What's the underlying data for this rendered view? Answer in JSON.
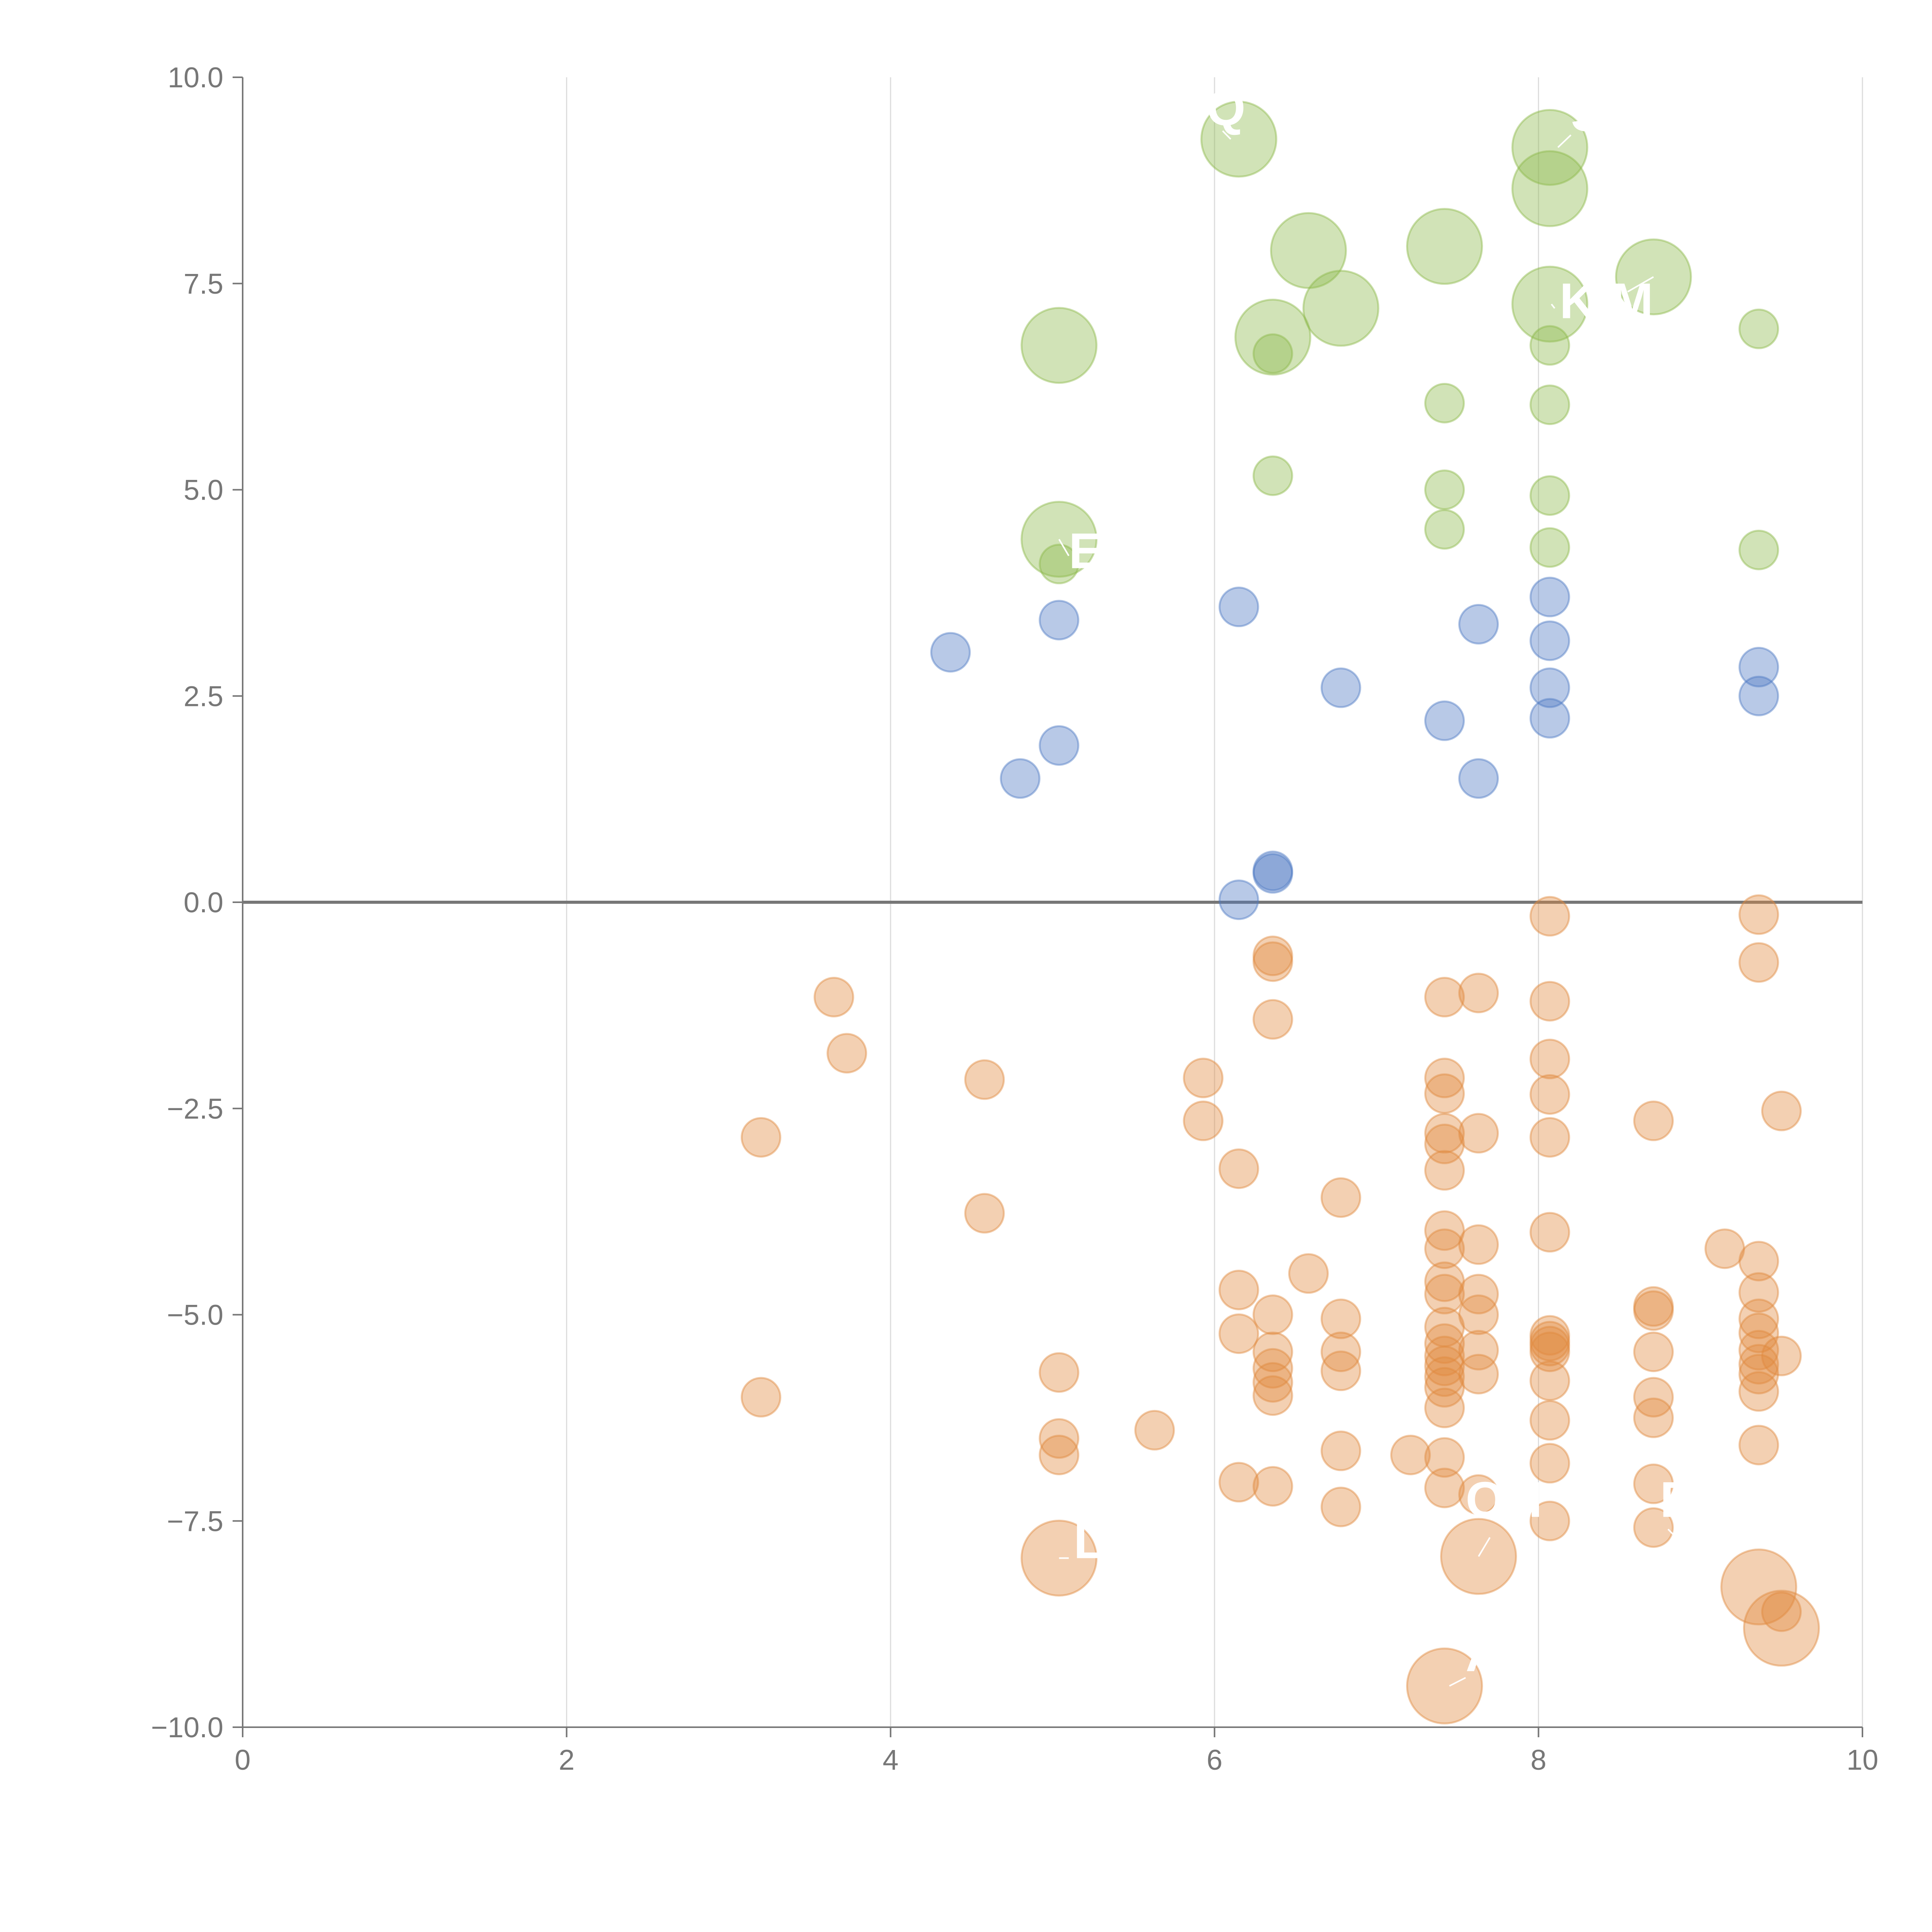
{
  "colors": {
    "positive": "#4e79c4",
    "high": "#8bb84a",
    "negative": "#e08a3f",
    "axis": "#777777",
    "grid": "#dcdcdc",
    "label": "#ffffff"
  },
  "chart_data": {
    "type": "scatter",
    "xlim": [
      0,
      10
    ],
    "ylim": [
      -10,
      10
    ],
    "grid": "vertical",
    "x_ticks": [
      0,
      2,
      4,
      6,
      8,
      10
    ],
    "y_ticks": [
      -10,
      -7.5,
      -5,
      -2.5,
      0,
      2.5,
      5,
      7.5,
      10
    ],
    "x_tick_labels": [
      "0",
      "2",
      "4",
      "6",
      "8",
      "10"
    ],
    "y_tick_labels": [
      "−10.0",
      "−7.5",
      "−5.0",
      "−2.5",
      "0.0",
      "2.5",
      "5.0",
      "7.5",
      "10.0"
    ],
    "bubble_sizes": {
      "small": 1,
      "large": 3
    },
    "series": [
      {
        "color": "high",
        "points": [
          [
            6.15,
            9.25,
            3
          ],
          [
            8.07,
            9.15,
            3
          ],
          [
            8.07,
            8.65,
            3
          ],
          [
            6.58,
            7.9,
            3
          ],
          [
            7.42,
            7.95,
            3
          ],
          [
            8.71,
            7.58,
            3
          ],
          [
            6.78,
            7.2,
            3
          ],
          [
            8.07,
            7.25,
            3
          ],
          [
            5.04,
            6.75,
            3
          ],
          [
            6.36,
            6.85,
            3
          ],
          [
            5.04,
            4.4,
            3
          ],
          [
            9.36,
            6.95,
            1
          ],
          [
            8.07,
            6.75,
            1
          ],
          [
            6.36,
            6.65,
            1
          ],
          [
            7.42,
            6.05,
            1
          ],
          [
            8.07,
            6.03,
            1
          ],
          [
            6.36,
            5.17,
            1
          ],
          [
            7.42,
            5.0,
            1
          ],
          [
            8.07,
            4.93,
            1
          ],
          [
            7.42,
            4.52,
            1
          ],
          [
            8.07,
            4.3,
            1
          ],
          [
            9.36,
            4.27,
            1
          ],
          [
            5.04,
            4.1,
            1
          ]
        ]
      },
      {
        "color": "positive",
        "points": [
          [
            8.07,
            3.7,
            1
          ],
          [
            6.15,
            3.58,
            1
          ],
          [
            5.04,
            3.42,
            1
          ],
          [
            7.63,
            3.37,
            1
          ],
          [
            8.07,
            3.17,
            1
          ],
          [
            4.37,
            3.03,
            1
          ],
          [
            9.36,
            2.85,
            1
          ],
          [
            6.78,
            2.6,
            1
          ],
          [
            8.07,
            2.6,
            1
          ],
          [
            9.36,
            2.5,
            1
          ],
          [
            7.42,
            2.2,
            1
          ],
          [
            8.07,
            2.23,
            1
          ],
          [
            5.04,
            1.9,
            1
          ],
          [
            4.8,
            1.5,
            1
          ],
          [
            7.63,
            1.5,
            1
          ],
          [
            6.36,
            0.38,
            1
          ],
          [
            6.36,
            0.35,
            1
          ],
          [
            6.15,
            0.03,
            1
          ]
        ]
      },
      {
        "color": "negative",
        "points": [
          [
            8.07,
            -0.17,
            1
          ],
          [
            9.36,
            -0.15,
            1
          ],
          [
            6.36,
            -0.65,
            1
          ],
          [
            6.36,
            -0.72,
            1
          ],
          [
            9.36,
            -0.73,
            1
          ],
          [
            3.65,
            -1.15,
            1
          ],
          [
            7.42,
            -1.15,
            1
          ],
          [
            7.63,
            -1.1,
            1
          ],
          [
            8.07,
            -1.2,
            1
          ],
          [
            6.36,
            -1.42,
            1
          ],
          [
            3.73,
            -1.83,
            1
          ],
          [
            8.07,
            -1.9,
            1
          ],
          [
            4.58,
            -2.15,
            1
          ],
          [
            5.93,
            -2.13,
            1
          ],
          [
            7.42,
            -2.13,
            1
          ],
          [
            7.42,
            -2.32,
            1
          ],
          [
            8.07,
            -2.33,
            1
          ],
          [
            9.5,
            -2.53,
            1
          ],
          [
            5.93,
            -2.65,
            1
          ],
          [
            8.71,
            -2.65,
            1
          ],
          [
            3.2,
            -2.85,
            1
          ],
          [
            7.42,
            -2.8,
            1
          ],
          [
            7.42,
            -2.93,
            1
          ],
          [
            7.63,
            -2.8,
            1
          ],
          [
            8.07,
            -2.85,
            1
          ],
          [
            6.15,
            -3.23,
            1
          ],
          [
            7.42,
            -3.25,
            1
          ],
          [
            6.78,
            -3.58,
            1
          ],
          [
            4.58,
            -3.77,
            1
          ],
          [
            7.42,
            -3.98,
            1
          ],
          [
            8.07,
            -4.0,
            1
          ],
          [
            7.42,
            -4.2,
            1
          ],
          [
            7.63,
            -4.15,
            1
          ],
          [
            9.15,
            -4.2,
            1
          ],
          [
            9.36,
            -4.35,
            1
          ],
          [
            6.58,
            -4.5,
            1
          ],
          [
            7.42,
            -4.6,
            1
          ],
          [
            6.15,
            -4.7,
            1
          ],
          [
            7.42,
            -4.75,
            1
          ],
          [
            7.63,
            -4.75,
            1
          ],
          [
            9.36,
            -4.73,
            1
          ],
          [
            8.71,
            -4.9,
            1
          ],
          [
            8.71,
            -4.95,
            1
          ],
          [
            6.36,
            -5.0,
            1
          ],
          [
            6.78,
            -5.05,
            1
          ],
          [
            7.63,
            -5.0,
            1
          ],
          [
            9.36,
            -5.05,
            1
          ],
          [
            7.42,
            -5.15,
            1
          ],
          [
            6.15,
            -5.23,
            1
          ],
          [
            8.07,
            -5.25,
            1
          ],
          [
            8.07,
            -5.32,
            1
          ],
          [
            8.07,
            -5.38,
            1
          ],
          [
            9.36,
            -5.22,
            1
          ],
          [
            7.42,
            -5.35,
            1
          ],
          [
            8.07,
            -5.45,
            1
          ],
          [
            6.36,
            -5.45,
            1
          ],
          [
            6.78,
            -5.45,
            1
          ],
          [
            7.63,
            -5.43,
            1
          ],
          [
            9.36,
            -5.43,
            1
          ],
          [
            7.42,
            -5.5,
            1
          ],
          [
            8.71,
            -5.45,
            1
          ],
          [
            9.5,
            -5.5,
            1
          ],
          [
            7.42,
            -5.62,
            1
          ],
          [
            6.36,
            -5.65,
            1
          ],
          [
            9.36,
            -5.6,
            1
          ],
          [
            5.04,
            -5.7,
            1
          ],
          [
            6.78,
            -5.68,
            1
          ],
          [
            7.63,
            -5.72,
            1
          ],
          [
            9.36,
            -5.72,
            1
          ],
          [
            7.42,
            -5.75,
            1
          ],
          [
            8.07,
            -5.8,
            1
          ],
          [
            6.36,
            -5.82,
            1
          ],
          [
            7.42,
            -5.88,
            1
          ],
          [
            9.36,
            -5.93,
            1
          ],
          [
            6.36,
            -5.98,
            1
          ],
          [
            3.2,
            -6.0,
            1
          ],
          [
            8.71,
            -6.0,
            1
          ],
          [
            7.42,
            -6.13,
            1
          ],
          [
            8.07,
            -6.28,
            1
          ],
          [
            8.71,
            -6.25,
            1
          ],
          [
            5.63,
            -6.4,
            1
          ],
          [
            5.04,
            -6.5,
            1
          ],
          [
            9.36,
            -6.58,
            1
          ],
          [
            6.78,
            -6.65,
            1
          ],
          [
            5.04,
            -6.7,
            1
          ],
          [
            7.21,
            -6.7,
            1
          ],
          [
            7.42,
            -6.73,
            1
          ],
          [
            8.07,
            -6.8,
            1
          ],
          [
            6.15,
            -7.03,
            1
          ],
          [
            6.36,
            -7.08,
            1
          ],
          [
            7.42,
            -7.1,
            1
          ],
          [
            8.71,
            -7.05,
            1
          ],
          [
            7.63,
            -7.18,
            1
          ],
          [
            6.78,
            -7.33,
            1
          ],
          [
            8.07,
            -7.5,
            1
          ],
          [
            8.71,
            -7.58,
            1
          ],
          [
            9.5,
            -8.6,
            1
          ],
          [
            5.04,
            -7.95,
            3
          ],
          [
            7.63,
            -7.93,
            3
          ],
          [
            9.36,
            -8.3,
            3
          ],
          [
            9.5,
            -8.8,
            3
          ],
          [
            7.42,
            -9.5,
            3
          ]
        ]
      }
    ],
    "annotations": [
      {
        "text": "Q",
        "x": 5.95,
        "y": 9.42,
        "tx": 6.05,
        "ty": 9.35,
        "px": 6.1,
        "py": 9.25
      },
      {
        "text": "S",
        "x": 8.2,
        "y": 9.35,
        "tx": 8.2,
        "ty": 9.3,
        "px": 8.12,
        "py": 9.15
      },
      {
        "text": "K",
        "x": 8.13,
        "y": 7.08,
        "tx": 8.1,
        "ty": 7.2,
        "px": 8.08,
        "py": 7.25
      },
      {
        "text": "M",
        "x": 8.45,
        "y": 7.08,
        "tx": 8.55,
        "ty": 7.4,
        "px": 8.71,
        "py": 7.58
      },
      {
        "text": "E",
        "x": 5.1,
        "y": 4.05,
        "tx": 5.1,
        "ty": 4.2,
        "px": 5.04,
        "py": 4.4
      },
      {
        "text": "O",
        "x": 7.55,
        "y": -7.45,
        "tx": 7.7,
        "ty": -7.7,
        "px": 7.63,
        "py": -7.93
      },
      {
        "text": "H",
        "x": 7.8,
        "y": -7.45,
        "tx": 7.85,
        "ty": -7.6,
        "px": 7.9,
        "py": -7.7
      },
      {
        "text": "F",
        "x": 8.75,
        "y": -7.45,
        "tx": 8.8,
        "ty": -7.6,
        "px": 8.85,
        "py": -7.7
      },
      {
        "text": "L",
        "x": 5.13,
        "y": -7.95,
        "tx": 5.1,
        "ty": -7.95,
        "px": 5.04,
        "py": -7.95
      },
      {
        "text": "A",
        "x": 7.55,
        "y": -9.32,
        "tx": 7.55,
        "ty": -9.4,
        "px": 7.45,
        "py": -9.5
      }
    ]
  }
}
